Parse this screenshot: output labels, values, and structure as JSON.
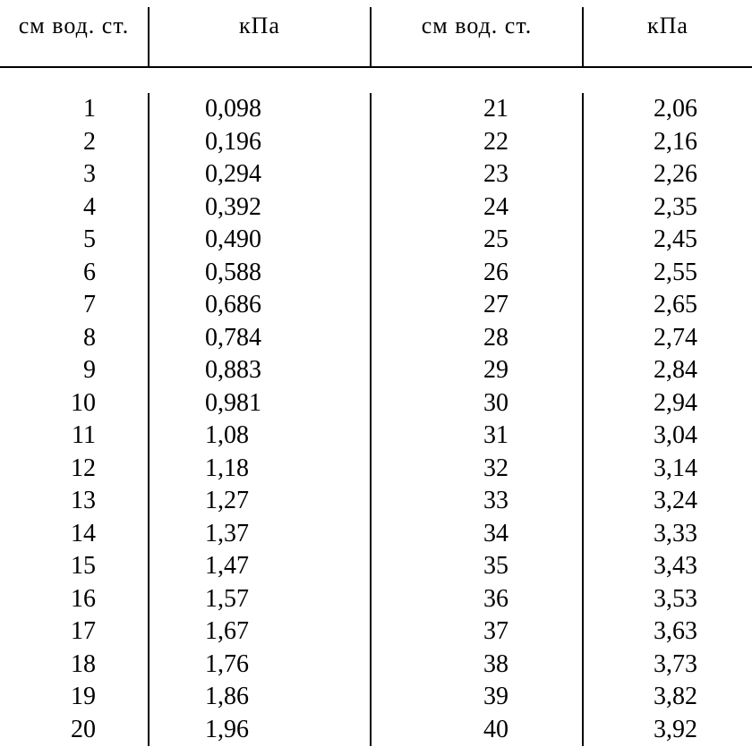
{
  "table": {
    "type": "table",
    "background_color": "#ffffff",
    "text_color": "#000000",
    "border_color": "#000000",
    "font_family": "Times New Roman, serif",
    "header_fontsize": 26,
    "body_fontsize": 28,
    "columns": [
      {
        "label": "см вод. ст.",
        "align": "right"
      },
      {
        "label": "кПа",
        "align": "left"
      },
      {
        "label": "см вод. ст.",
        "align": "right"
      },
      {
        "label": "кПа",
        "align": "left"
      }
    ],
    "col1": [
      "1",
      "2",
      "3",
      "4",
      "5",
      "6",
      "7",
      "8",
      "9",
      "10",
      "11",
      "12",
      "13",
      "14",
      "15",
      "16",
      "17",
      "18",
      "19",
      "20"
    ],
    "col2": [
      "0,098",
      "0,196",
      "0,294",
      "0,392",
      "0,490",
      "0,588",
      "0,686",
      "0,784",
      "0,883",
      "0,981",
      "1,08",
      "1,18",
      "1,27",
      "1,37",
      "1,47",
      "1,57",
      "1,67",
      "1,76",
      "1,86",
      "1,96"
    ],
    "col3": [
      "21",
      "22",
      "23",
      "24",
      "25",
      "26",
      "27",
      "28",
      "29",
      "30",
      "31",
      "32",
      "33",
      "34",
      "35",
      "36",
      "37",
      "38",
      "39",
      "40"
    ],
    "col4": [
      "2,06",
      "2,16",
      "2,26",
      "2,35",
      "2,45",
      "2,55",
      "2,65",
      "2,74",
      "2,84",
      "2,94",
      "3,04",
      "3,14",
      "3,24",
      "3,33",
      "3,43",
      "3,53",
      "3,63",
      "3,73",
      "3,82",
      "3,92"
    ]
  }
}
